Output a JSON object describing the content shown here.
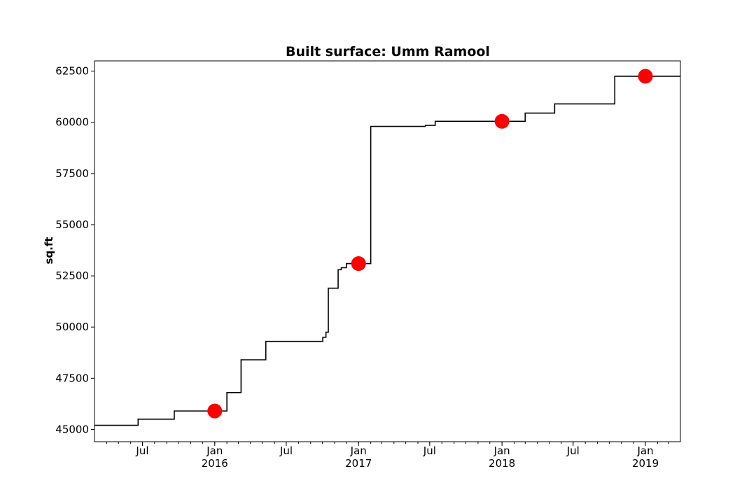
{
  "chart_data": {
    "type": "line",
    "title": "Built surface: Umm Ramool",
    "xlabel": "",
    "ylabel": "sq.ft",
    "xlim": [
      "2015-03-01",
      "2019-03-31"
    ],
    "ylim": [
      44400,
      63000
    ],
    "yticks": [
      45000,
      47500,
      50000,
      52500,
      55000,
      57500,
      60000,
      62500
    ],
    "xticks": [
      {
        "date": "2015-07-01",
        "label": "Jul",
        "sublabel": ""
      },
      {
        "date": "2016-01-01",
        "label": "Jan",
        "sublabel": "2016"
      },
      {
        "date": "2016-07-01",
        "label": "Jul",
        "sublabel": ""
      },
      {
        "date": "2017-01-01",
        "label": "Jan",
        "sublabel": "2017"
      },
      {
        "date": "2017-07-01",
        "label": "Jul",
        "sublabel": ""
      },
      {
        "date": "2018-01-01",
        "label": "Jan",
        "sublabel": "2018"
      },
      {
        "date": "2018-07-01",
        "label": "Jul",
        "sublabel": ""
      },
      {
        "date": "2019-01-01",
        "label": "Jan",
        "sublabel": "2019"
      }
    ],
    "grid": false,
    "series": [
      {
        "color": "#000000",
        "style": "step",
        "x": [
          "2015-03-01",
          "2015-06-20",
          "2015-09-20",
          "2016-02-01",
          "2016-03-08",
          "2016-05-10",
          "2016-10-02",
          "2016-10-10",
          "2016-10-16",
          "2016-11-10",
          "2016-11-18",
          "2016-12-01",
          "2017-02-01",
          "2017-06-20",
          "2017-07-15",
          "2018-03-01",
          "2018-05-15",
          "2018-10-15",
          "2019-03-31"
        ],
        "y": [
          45200,
          45500,
          45900,
          46800,
          48400,
          49300,
          49500,
          49750,
          51900,
          52800,
          52900,
          53100,
          59800,
          59850,
          60050,
          60450,
          60900,
          62250,
          62250
        ]
      },
      {
        "name": "",
        "color": "#ff0000",
        "style": "markers",
        "x": [
          "2016-01-01",
          "2017-01-01",
          "2018-01-01",
          "2019-01-01"
        ],
        "y": [
          45900,
          53100,
          60050,
          62250
        ]
      }
    ]
  }
}
